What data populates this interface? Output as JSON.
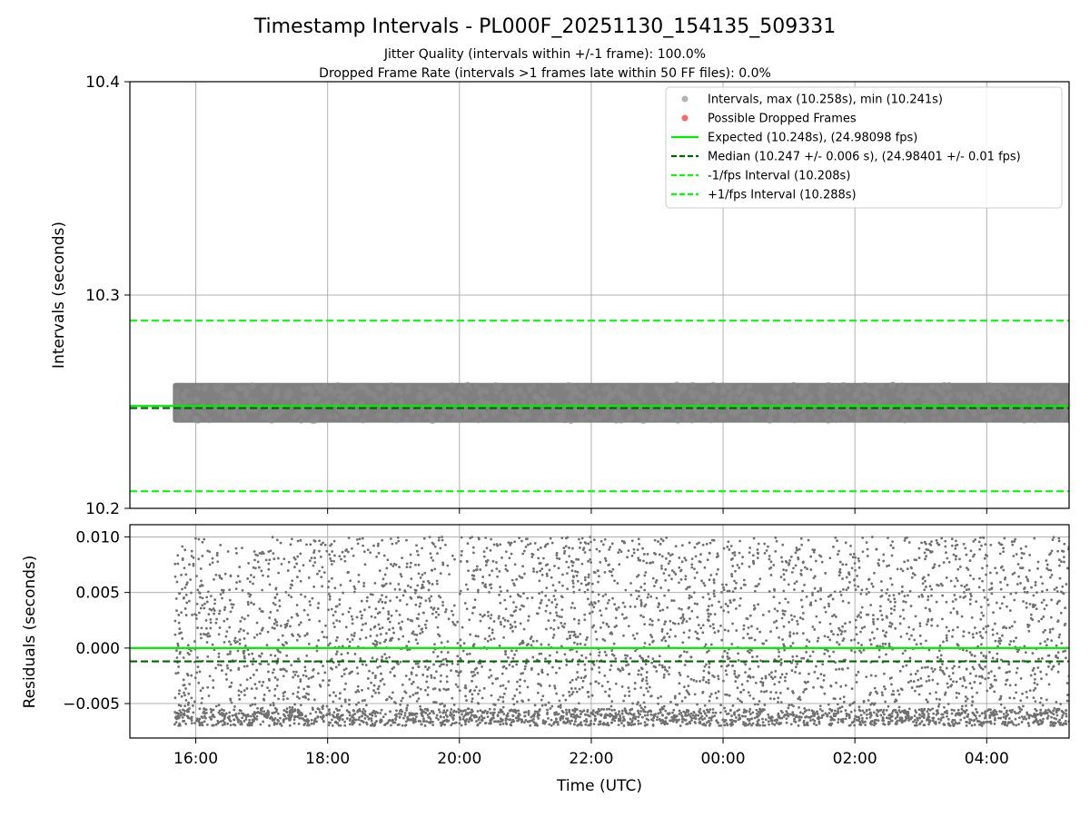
{
  "figure": {
    "title": "Timestamp Intervals - PL000F_20251130_154135_509331",
    "subtitle_1": "Jitter Quality (intervals within +/-1 frame): 100.0%",
    "subtitle_2": "Dropped Frame Rate (intervals >1 frames late within 50 FF files): 0.0%"
  },
  "colors": {
    "points": "#808080",
    "dropped": "#ff0000",
    "expected": "#00ee00",
    "median": "#006400",
    "interval_lines": "#00ff00",
    "grid": "#b0b0b0"
  },
  "chart_data": [
    {
      "type": "scatter",
      "panel": "intervals",
      "title": "Timestamp Intervals - PL000F_20251130_154135_509331",
      "xlabel": "",
      "ylabel": "Intervals (seconds)",
      "ylim": [
        10.2,
        10.4
      ],
      "yticks": [
        10.2,
        10.3,
        10.4
      ],
      "ytick_labels": [
        "10.2",
        "10.3",
        "10.4"
      ],
      "xlim_hours": [
        15.0,
        29.25
      ],
      "data_start_hour": 15.68,
      "grid": true,
      "legend_position": "top-right",
      "series": [
        {
          "name": "Intervals, max (10.258s), min (10.241s)",
          "kind": "scatter",
          "min": 10.241,
          "max": 10.258,
          "dropped_count": 0
        },
        {
          "name": "Possible Dropped Frames",
          "kind": "scatter",
          "values": []
        },
        {
          "name": "Expected (10.248s), (24.98098 fps)",
          "kind": "hline",
          "y": 10.248,
          "style": "solid"
        },
        {
          "name": "Median (10.247 +/- 0.006 s), (24.98401 +/- 0.01 fps)",
          "kind": "hline",
          "y": 10.247,
          "style": "dashed"
        },
        {
          "name": "-1/fps Interval (10.208s)",
          "kind": "hline",
          "y": 10.208,
          "style": "dashed"
        },
        {
          "name": "+1/fps Interval (10.288s)",
          "kind": "hline",
          "y": 10.288,
          "style": "dashed"
        }
      ]
    },
    {
      "type": "scatter",
      "panel": "residuals",
      "xlabel": "Time (UTC)",
      "ylabel": "Residuals (seconds)",
      "ylim": [
        -0.0081,
        0.0111
      ],
      "yticks": [
        -0.005,
        0.0,
        0.005,
        0.01
      ],
      "ytick_labels": [
        "−0.005",
        "0.000",
        "0.005",
        "0.010"
      ],
      "xlim_hours": [
        15.0,
        29.25
      ],
      "xticks_hours": [
        16,
        18,
        20,
        22,
        24,
        26,
        28
      ],
      "xtick_labels": [
        "16:00",
        "18:00",
        "20:00",
        "22:00",
        "00:00",
        "02:00",
        "04:00"
      ],
      "grid": true,
      "series": [
        {
          "name": "Residuals",
          "kind": "scatter",
          "min": -0.007,
          "max": 0.01
        },
        {
          "name": "Expected",
          "kind": "hline",
          "y": 0.0,
          "style": "solid"
        },
        {
          "name": "Median",
          "kind": "hline",
          "y": -0.0012,
          "style": "dashed"
        }
      ]
    }
  ]
}
